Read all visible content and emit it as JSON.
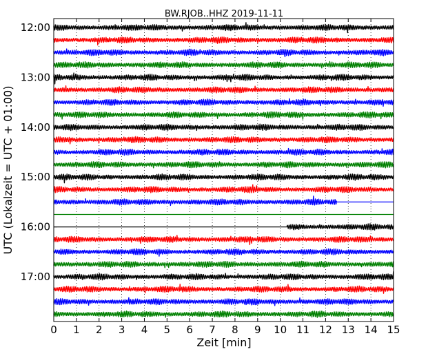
{
  "chart_data": {
    "type": "line",
    "title": "BW.RJOB..HHZ 2019-11-11",
    "xlabel": "Zeit  [min]",
    "ylabel": "UTC (Lokalzeit = UTC + 01:00)",
    "xlim": [
      0,
      15
    ],
    "x_ticks": [
      "0",
      "1",
      "2",
      "3",
      "4",
      "5",
      "6",
      "7",
      "8",
      "9",
      "10",
      "11",
      "12",
      "13",
      "14",
      "15"
    ],
    "y_tick_labels": [
      "12:00",
      "13:00",
      "14:00",
      "15:00",
      "16:00",
      "17:00"
    ],
    "grid": "vertical dotted",
    "trace_colors": [
      "#000000",
      "#ff0000",
      "#0000ff",
      "#008000"
    ],
    "traces": [
      {
        "start": "12:00",
        "data": [
          0,
          15
        ]
      },
      {
        "start": "12:15",
        "data": [
          0,
          15
        ]
      },
      {
        "start": "12:30",
        "data": [
          0,
          15
        ]
      },
      {
        "start": "12:45",
        "data": [
          0,
          15
        ]
      },
      {
        "start": "13:00",
        "data": [
          0,
          15
        ]
      },
      {
        "start": "13:15",
        "data": [
          0,
          15
        ]
      },
      {
        "start": "13:30",
        "data": [
          0,
          15
        ]
      },
      {
        "start": "13:45",
        "data": [
          0,
          15
        ]
      },
      {
        "start": "14:00",
        "data": [
          0,
          15
        ]
      },
      {
        "start": "14:15",
        "data": [
          0,
          15
        ]
      },
      {
        "start": "14:30",
        "data": [
          0,
          15
        ]
      },
      {
        "start": "14:45",
        "data": [
          0,
          15
        ]
      },
      {
        "start": "15:00",
        "data": [
          0,
          15
        ]
      },
      {
        "start": "15:15",
        "data": [
          0,
          15
        ]
      },
      {
        "start": "15:30",
        "data": [
          0,
          12.5
        ]
      },
      {
        "start": "15:45",
        "data": []
      },
      {
        "start": "16:00",
        "data": [
          10.3,
          15
        ]
      },
      {
        "start": "16:15",
        "data": [
          0,
          15
        ]
      },
      {
        "start": "16:30",
        "data": [
          0,
          15
        ]
      },
      {
        "start": "16:45",
        "data": [
          0,
          15
        ]
      },
      {
        "start": "17:00",
        "data": [
          0,
          15
        ]
      },
      {
        "start": "17:15",
        "data": [
          0,
          15
        ]
      },
      {
        "start": "17:30",
        "data": [
          0,
          15
        ]
      },
      {
        "start": "17:45",
        "data": [
          0,
          15
        ]
      }
    ]
  }
}
